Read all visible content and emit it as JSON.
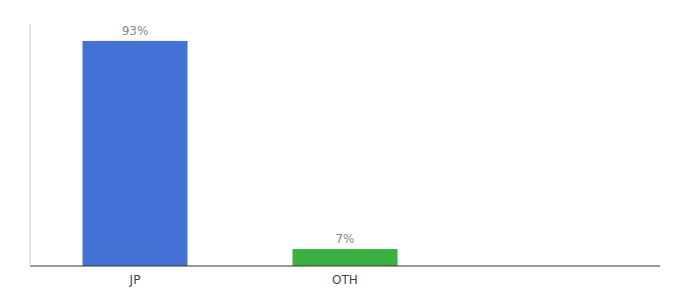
{
  "chart_data": {
    "type": "bar",
    "categories": [
      "JP",
      "OTH"
    ],
    "values": [
      93,
      7
    ],
    "value_labels": [
      "93%",
      "7%"
    ],
    "colors": [
      "#4472d4",
      "#3cb043"
    ],
    "ylim": [
      0,
      100
    ],
    "data_labels": true,
    "tick_labels": "x",
    "grid": false
  }
}
